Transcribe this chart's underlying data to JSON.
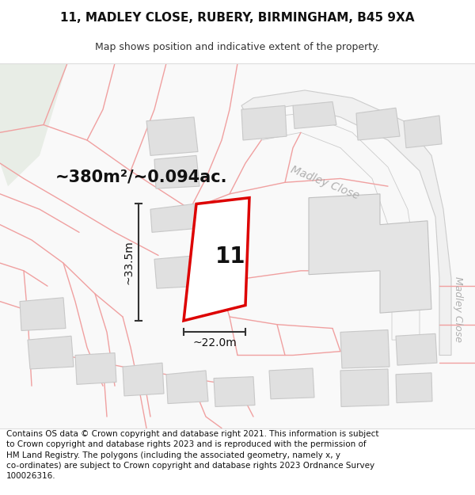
{
  "title": "11, MADLEY CLOSE, RUBERY, BIRMINGHAM, B45 9XA",
  "subtitle": "Map shows position and indicative extent of the property.",
  "footer": "Contains OS data © Crown copyright and database right 2021. This information is subject\nto Crown copyright and database rights 2023 and is reproduced with the permission of\nHM Land Registry. The polygons (including the associated geometry, namely x, y\nco-ordinates) are subject to Crown copyright and database rights 2023 Ordnance Survey\n100026316.",
  "area_label": "~380m²/~0.094ac.",
  "street_label_diag": "Madley Close",
  "street_label_vert": "Madley Close",
  "number_label": "11",
  "dim_width": "~22.0m",
  "dim_height": "~33.5m",
  "bg_color": "#ffffff",
  "map_bg": "#f9f9f9",
  "boundary_color": "#f5b8b8",
  "road_outline_color": "#c8c8c8",
  "road_fill_color": "#f0f0f0",
  "building_fill": "#e0e0e0",
  "building_edge": "#c0c0c0",
  "plot_color": "#dd0000",
  "plot_fill": "#ffffff",
  "dim_color": "#333333",
  "green_fill": "#e8ede8",
  "title_fontsize": 11,
  "subtitle_fontsize": 9,
  "footer_fontsize": 7.5,
  "area_fontsize": 15,
  "number_fontsize": 20,
  "street_fontsize": 10
}
